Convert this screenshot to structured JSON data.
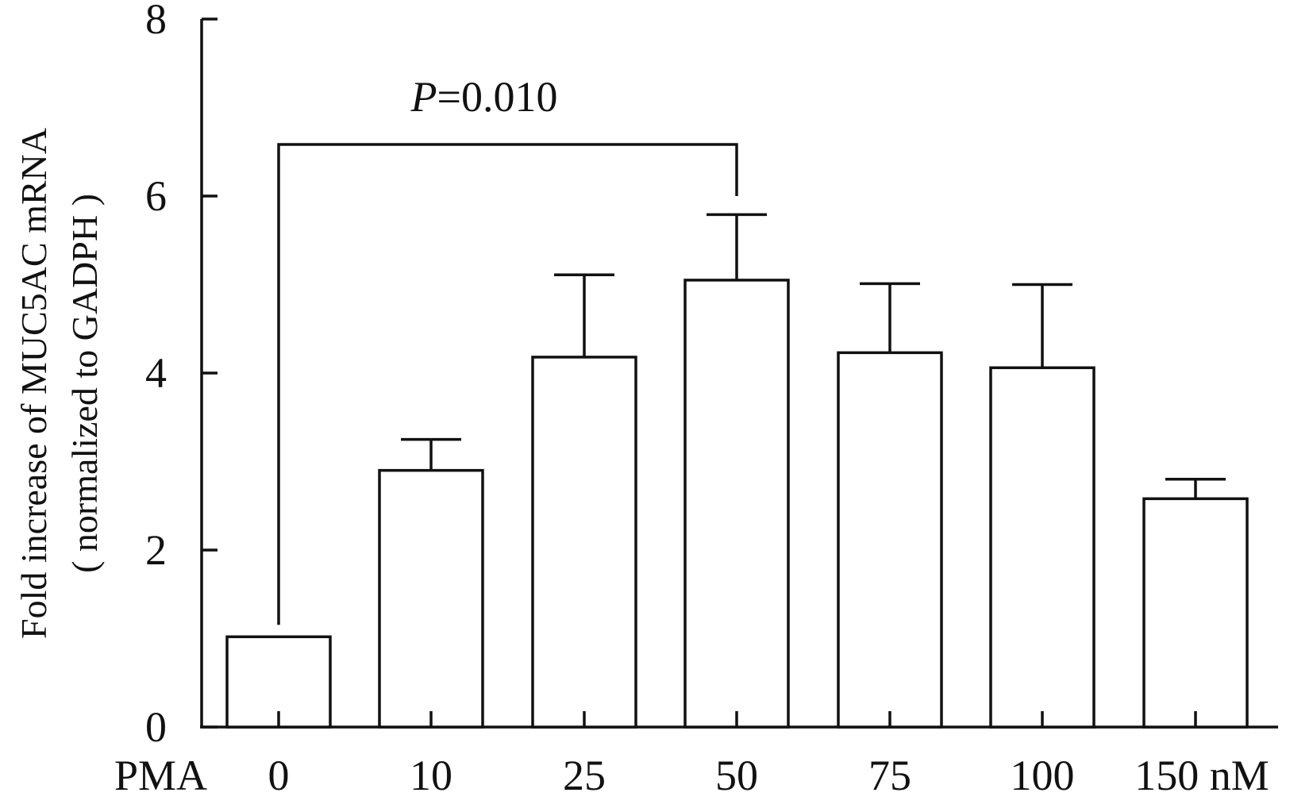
{
  "chart_data": {
    "type": "bar",
    "title": "",
    "ylabel_line1": "Fold increase of MUC5AC mRNA",
    "ylabel_line2": "( normalized to GADPH )",
    "xlabel": "PMA",
    "x_unit": "nM",
    "categories": [
      "0",
      "10",
      "25",
      "50",
      "75",
      "100",
      "150"
    ],
    "values": [
      1.02,
      2.9,
      4.18,
      5.05,
      4.23,
      4.06,
      2.58
    ],
    "errors": [
      0.0,
      0.35,
      0.93,
      0.74,
      0.78,
      0.94,
      0.22
    ],
    "ylim": [
      0,
      8
    ],
    "yticks": [
      "0",
      "2",
      "4",
      "6",
      "8"
    ],
    "grid": false,
    "annotation": {
      "p_symbol": "P",
      "p_text": "=0.010",
      "from_category": 0,
      "to_category": 3
    },
    "colors": {
      "bar_fill": "#ffffff",
      "stroke": "#111111"
    }
  }
}
